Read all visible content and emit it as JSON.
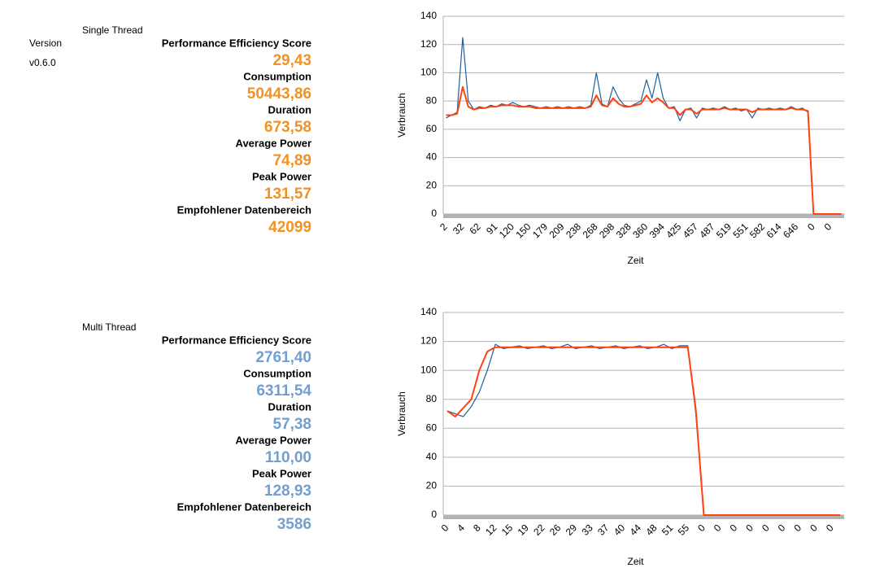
{
  "sheet": {
    "version_label": "Version",
    "version": "v0.6.0",
    "blocks": [
      {
        "title": "Single Thread",
        "color": "#f39220",
        "metrics": [
          {
            "label": "Performance Efficiency Score",
            "value": "29,43"
          },
          {
            "label": "Consumption",
            "value": "50443,86"
          },
          {
            "label": "Duration",
            "value": "673,58"
          },
          {
            "label": "Average Power",
            "value": "74,89"
          },
          {
            "label": "Peak Power",
            "value": "131,57"
          },
          {
            "label": "Empfohlener Datenbereich",
            "value": "42099"
          }
        ]
      },
      {
        "title": "Multi Thread",
        "color": "#729fcf",
        "metrics": [
          {
            "label": "Performance Efficiency Score",
            "value": "2761,40"
          },
          {
            "label": "Consumption",
            "value": "6311,54"
          },
          {
            "label": "Duration",
            "value": "57,38"
          },
          {
            "label": "Average Power",
            "value": "110,00"
          },
          {
            "label": "Peak Power",
            "value": "128,93"
          },
          {
            "label": "Empfohlener Datenbereich",
            "value": "3586"
          }
        ]
      }
    ]
  },
  "chart_data": [
    {
      "type": "line",
      "x_label": "Zeit",
      "y_label": "Verbrauch",
      "ylim": [
        0,
        140
      ],
      "yticks": [
        0,
        20,
        40,
        60,
        80,
        100,
        120,
        140
      ],
      "grid": true,
      "categories": [
        "2",
        null,
        null,
        "32",
        null,
        null,
        "62",
        null,
        null,
        "91",
        null,
        null,
        "120",
        null,
        null,
        "150",
        null,
        null,
        "179",
        null,
        null,
        "209",
        null,
        null,
        "238",
        null,
        null,
        "268",
        null,
        null,
        "298",
        null,
        null,
        "328",
        null,
        null,
        "360",
        null,
        null,
        "394",
        null,
        null,
        "425",
        null,
        null,
        "457",
        null,
        null,
        "487",
        null,
        null,
        "519",
        null,
        null,
        "551",
        null,
        null,
        "582",
        null,
        null,
        "614",
        null,
        null,
        "646",
        null,
        null,
        "0",
        null,
        null,
        "0",
        null,
        null
      ],
      "series": [
        {
          "color": "#1f5f9e",
          "values": [
            68,
            70,
            72,
            125,
            80,
            74,
            76,
            75,
            77,
            76,
            78,
            77,
            79,
            77,
            76,
            77,
            76,
            75,
            76,
            75,
            76,
            75,
            76,
            75,
            76,
            75,
            77,
            100,
            78,
            76,
            90,
            82,
            77,
            76,
            78,
            80,
            95,
            82,
            100,
            82,
            75,
            76,
            66,
            74,
            75,
            68,
            75,
            74,
            75,
            74,
            76,
            74,
            75,
            73,
            74,
            68,
            75,
            74,
            75,
            74,
            75,
            74,
            76,
            74,
            75,
            72,
            0,
            0,
            0,
            0,
            0,
            0
          ]
        },
        {
          "color": "#ff420e",
          "values": [
            70,
            70,
            71,
            90,
            76,
            74,
            75,
            75,
            76,
            76,
            77,
            77,
            77,
            76,
            76,
            76,
            75,
            75,
            75,
            75,
            75,
            75,
            75,
            75,
            75,
            75,
            76,
            84,
            77,
            76,
            82,
            78,
            76,
            76,
            77,
            78,
            84,
            79,
            82,
            79,
            75,
            75,
            70,
            74,
            74,
            71,
            74,
            74,
            74,
            74,
            75,
            74,
            74,
            74,
            74,
            72,
            74,
            74,
            74,
            74,
            74,
            74,
            75,
            74,
            74,
            73,
            0,
            0,
            0,
            0,
            0,
            0
          ]
        }
      ]
    },
    {
      "type": "line",
      "x_label": "Zeit",
      "y_label": "Verbrauch",
      "ylim": [
        0,
        140
      ],
      "yticks": [
        0,
        20,
        40,
        60,
        80,
        100,
        120,
        140
      ],
      "grid": true,
      "categories": [
        "0",
        null,
        "4",
        null,
        "8",
        null,
        "12",
        null,
        "15",
        null,
        "19",
        null,
        "22",
        null,
        "26",
        null,
        "29",
        null,
        "33",
        null,
        "37",
        null,
        "40",
        null,
        "44",
        null,
        "48",
        null,
        "51",
        null,
        "55",
        null,
        "0",
        null,
        "0",
        null,
        "0",
        null,
        "0",
        null,
        "0",
        null,
        "0",
        null,
        "0",
        null,
        "0",
        null,
        "0",
        null
      ],
      "series": [
        {
          "color": "#1f5f9e",
          "values": [
            72,
            70,
            68,
            75,
            85,
            100,
            118,
            115,
            116,
            117,
            115,
            116,
            117,
            115,
            116,
            118,
            115,
            116,
            117,
            115,
            116,
            117,
            115,
            116,
            117,
            115,
            116,
            118,
            115,
            117,
            117,
            70,
            0,
            0,
            0,
            0,
            0,
            0,
            0,
            0,
            0,
            0,
            0,
            0,
            0,
            0,
            0,
            0,
            0,
            0
          ]
        },
        {
          "color": "#ff420e",
          "values": [
            72,
            68,
            74,
            80,
            100,
            113,
            116,
            116,
            116,
            116,
            116,
            116,
            116,
            116,
            116,
            116,
            116,
            116,
            116,
            116,
            116,
            116,
            116,
            116,
            116,
            116,
            116,
            116,
            116,
            116,
            116,
            73,
            0,
            0,
            0,
            0,
            0,
            0,
            0,
            0,
            0,
            0,
            0,
            0,
            0,
            0,
            0,
            0,
            0,
            0
          ]
        }
      ]
    }
  ]
}
